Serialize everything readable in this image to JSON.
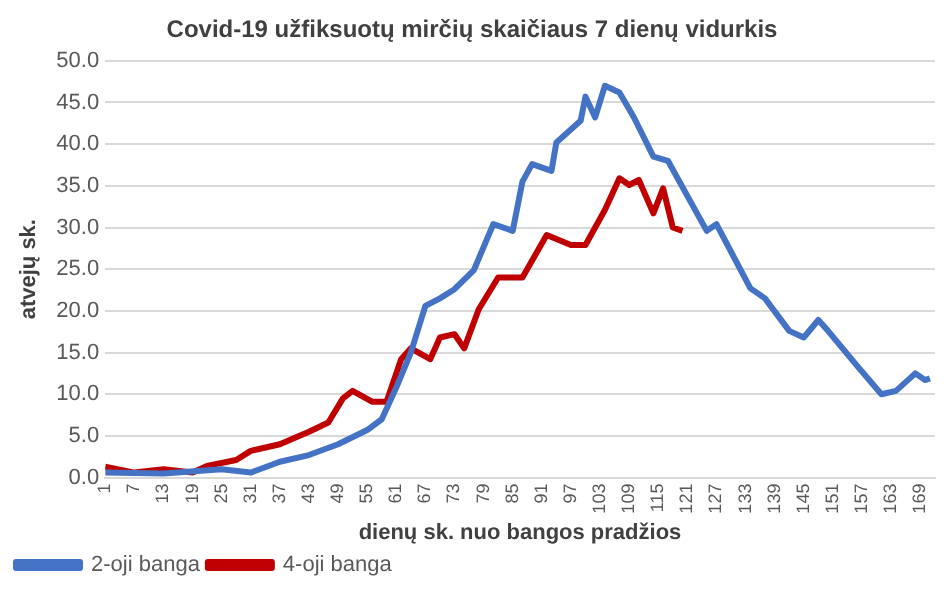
{
  "chart_data": {
    "type": "line",
    "title": "Covid-19 užfiksuotų mirčių skaičiaus 7 dienų vidurkis",
    "xlabel": "dienų sk. nuo bangos pradžios",
    "ylabel": "atvejų sk.",
    "xlim": [
      1,
      172
    ],
    "xticks": [
      1,
      7,
      13,
      19,
      25,
      31,
      37,
      43,
      49,
      55,
      61,
      67,
      73,
      79,
      85,
      91,
      97,
      103,
      109,
      115,
      121,
      127,
      133,
      139,
      145,
      151,
      157,
      163,
      169
    ],
    "ylim": [
      0,
      50
    ],
    "yticks": [
      {
        "value": 0,
        "label": "0.0"
      },
      {
        "value": 5,
        "label": "5.0"
      },
      {
        "value": 10,
        "label": "10.0"
      },
      {
        "value": 15,
        "label": "15.0"
      },
      {
        "value": 20,
        "label": "20.0"
      },
      {
        "value": 25,
        "label": "25.0"
      },
      {
        "value": 30,
        "label": "30.0"
      },
      {
        "value": 35,
        "label": "35.0"
      },
      {
        "value": 40,
        "label": "40.0"
      },
      {
        "value": 45,
        "label": "45.0"
      },
      {
        "value": 50,
        "label": "50.0"
      }
    ],
    "grid": "y",
    "legend": "bottom left",
    "marker": "none",
    "line_style": "solid",
    "series": [
      {
        "name": "2-oji banga",
        "color": "#4472c4",
        "x": [
          1,
          13,
          25,
          31,
          37,
          43,
          49,
          55,
          58,
          61,
          64,
          67,
          70,
          73,
          77,
          81,
          85,
          87,
          89,
          93,
          94,
          99,
          100,
          102,
          104,
          107,
          110,
          114,
          117,
          121,
          125,
          127,
          134,
          137,
          142,
          145,
          148,
          150,
          156,
          161,
          164,
          168,
          170,
          171
        ],
        "values": [
          0.6,
          0.5,
          1.0,
          0.6,
          1.9,
          2.7,
          4.0,
          5.7,
          7.0,
          10.8,
          15.0,
          20.6,
          21.5,
          22.6,
          24.9,
          30.4,
          29.6,
          35.5,
          37.6,
          36.8,
          40.2,
          42.8,
          45.7,
          43.2,
          47.0,
          46.2,
          43.2,
          38.5,
          38.0,
          33.8,
          29.6,
          30.4,
          22.7,
          21.5,
          17.6,
          16.8,
          18.9,
          17.6,
          13.4,
          10.0,
          10.4,
          12.5,
          11.7,
          11.9
        ]
      },
      {
        "name": "4-oji banga",
        "color": "#c00000",
        "x": [
          1,
          7,
          13,
          19,
          22,
          28,
          31,
          37,
          43,
          47,
          50,
          52,
          56,
          59,
          62,
          64,
          68,
          70,
          73,
          75,
          78,
          82,
          87,
          92,
          97,
          100,
          104,
          107,
          109,
          111,
          114,
          116,
          118,
          120
        ],
        "values": [
          1.3,
          0.6,
          1.0,
          0.6,
          1.4,
          2.1,
          3.2,
          4.0,
          5.5,
          6.6,
          9.5,
          10.4,
          9.1,
          9.1,
          14.2,
          15.5,
          14.2,
          16.8,
          17.2,
          15.5,
          20.2,
          24.0,
          24.0,
          29.1,
          27.9,
          27.9,
          32.1,
          35.9,
          35.1,
          35.7,
          31.7,
          34.7,
          30.0,
          29.6
        ]
      }
    ]
  }
}
